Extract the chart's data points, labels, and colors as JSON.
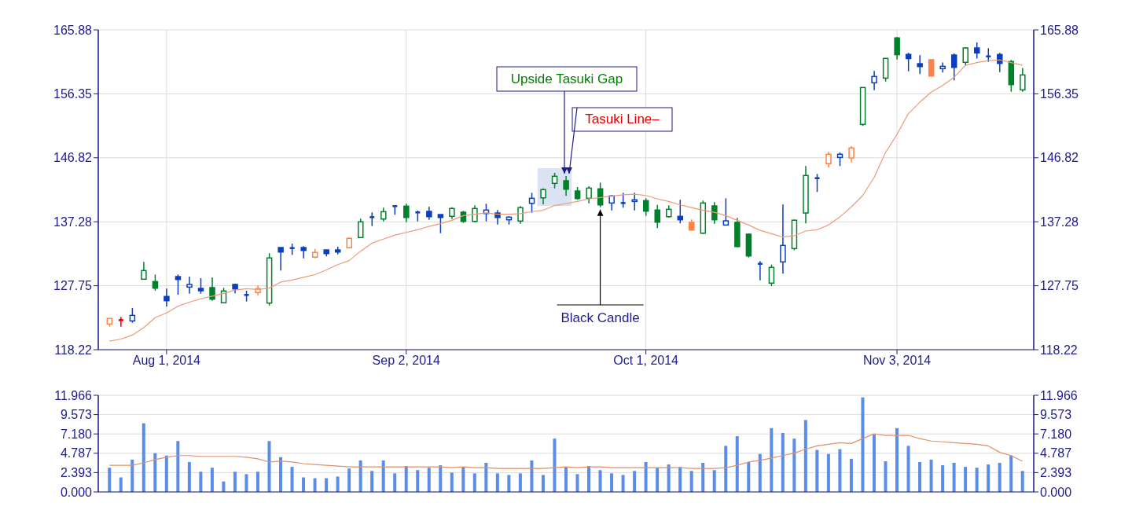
{
  "chart_data": [
    {
      "type": "candlestick",
      "categories": [
        null,
        null,
        null,
        null,
        null,
        "Aug 1, 2014",
        null,
        null,
        null,
        null,
        null,
        null,
        null,
        null,
        null,
        null,
        null,
        null,
        null,
        null,
        null,
        null,
        null,
        null,
        null,
        null,
        "Sep 2, 2014",
        null,
        null,
        null,
        null,
        null,
        null,
        null,
        null,
        null,
        null,
        null,
        null,
        null,
        null,
        null,
        null,
        null,
        null,
        null,
        null,
        "Oct 1, 2014",
        null,
        null,
        null,
        null,
        null,
        null,
        null,
        null,
        null,
        null,
        null,
        null,
        null,
        null,
        null,
        null,
        null,
        null,
        null,
        null,
        null,
        "Nov 3, 2014",
        null,
        null,
        null,
        null,
        null,
        null,
        null,
        null,
        null,
        null,
        null
      ],
      "ohlc": [
        [
          122.05,
          122.87,
          121.65,
          122.87
        ],
        [
          122.63,
          123.1,
          121.65,
          122.63
        ],
        [
          122.51,
          124.43,
          122.24,
          123.33
        ],
        [
          128.72,
          131.3,
          128.72,
          130.01
        ],
        [
          128.37,
          129.42,
          127.0,
          127.39
        ],
        [
          126.15,
          127.32,
          124.66,
          125.52
        ],
        [
          129.11,
          129.42,
          126.42,
          128.68
        ],
        [
          127.55,
          129.11,
          126.57,
          127.94
        ],
        [
          127.35,
          128.87,
          126.57,
          127.0
        ],
        [
          127.47,
          128.99,
          125.52,
          125.75
        ],
        [
          125.21,
          127.43,
          125.21,
          126.97
        ],
        [
          127.94,
          128.06,
          126.62,
          127.27
        ],
        [
          126.38,
          127.0,
          125.4,
          126.38
        ],
        [
          126.73,
          127.78,
          126.34,
          127.31
        ],
        [
          125.17,
          132.59,
          124.81,
          131.89
        ],
        [
          133.44,
          133.44,
          130.01,
          132.77
        ],
        [
          133.36,
          134.03,
          132.35,
          133.36
        ],
        [
          133.44,
          133.64,
          131.84,
          133.01
        ],
        [
          132.0,
          133.24,
          131.84,
          132.71
        ],
        [
          133.09,
          133.09,
          132.12,
          132.54
        ],
        [
          133.09,
          133.56,
          132.42,
          132.77
        ],
        [
          133.41,
          134.96,
          133.41,
          134.81
        ],
        [
          134.93,
          137.74,
          134.93,
          137.27
        ],
        [
          137.97,
          138.68,
          136.64,
          137.97
        ],
        [
          137.69,
          139.38,
          137.34,
          138.78
        ],
        [
          139.61,
          139.77,
          138.33,
          139.61
        ],
        [
          139.61,
          139.96,
          137.22,
          137.92
        ],
        [
          138.68,
          138.95,
          137.34,
          138.68
        ],
        [
          138.83,
          139.53,
          137.58,
          138.04
        ],
        [
          138.36,
          138.36,
          135.58,
          137.92
        ],
        [
          138.09,
          139.45,
          137.69,
          139.26
        ],
        [
          138.71,
          138.91,
          137.11,
          137.34
        ],
        [
          137.34,
          139.73,
          137.2,
          139.26
        ],
        [
          138.51,
          139.96,
          137.34,
          139.03
        ],
        [
          138.59,
          139.03,
          136.87,
          137.92
        ],
        [
          137.58,
          138.09,
          136.87,
          137.97
        ],
        [
          137.39,
          139.61,
          136.99,
          139.38
        ],
        [
          140.03,
          141.6,
          138.63,
          140.78
        ],
        [
          140.85,
          142.26,
          139.88,
          142.07
        ],
        [
          143.01,
          144.57,
          142.26,
          144.06
        ],
        [
          143.4,
          144.1,
          141.13,
          142.14
        ],
        [
          141.87,
          142.46,
          140.55,
          140.74
        ],
        [
          140.78,
          142.58,
          140.03,
          142.3
        ],
        [
          142.19,
          143.12,
          139.45,
          139.8
        ],
        [
          140.08,
          141.25,
          138.98,
          141.13
        ],
        [
          140.08,
          141.6,
          139.38,
          140.08
        ],
        [
          140.31,
          141.6,
          138.98,
          140.55
        ],
        [
          140.43,
          140.78,
          138.16,
          138.87
        ],
        [
          139.03,
          139.8,
          136.33,
          137.22
        ],
        [
          138.04,
          139.73,
          137.92,
          139.14
        ],
        [
          138.09,
          140.55,
          137.04,
          137.58
        ],
        [
          137.19,
          137.62,
          135.94,
          136.05
        ],
        [
          135.58,
          140.43,
          135.46,
          140.08
        ],
        [
          139.65,
          140.2,
          136.99,
          137.58
        ],
        [
          136.8,
          140.78,
          136.8,
          137.42
        ],
        [
          137.19,
          137.86,
          133.47,
          133.59
        ],
        [
          135.43,
          135.55,
          131.95,
          132.19
        ],
        [
          131.02,
          131.42,
          128.56,
          131.02
        ],
        [
          128.14,
          130.9,
          127.7,
          130.48
        ],
        [
          131.3,
          139.85,
          129.54,
          133.76
        ],
        [
          133.29,
          137.62,
          133.05,
          137.51
        ],
        [
          138.59,
          145.58,
          137.04,
          144.18
        ],
        [
          143.78,
          144.41,
          141.72,
          143.78
        ],
        [
          145.94,
          147.7,
          145.35,
          147.34
        ],
        [
          146.87,
          147.61,
          145.58,
          147.34
        ],
        [
          146.79,
          148.55,
          146.13,
          148.28
        ],
        [
          151.79,
          157.29,
          151.56,
          157.29
        ],
        [
          157.99,
          159.75,
          156.89,
          158.93
        ],
        [
          158.69,
          161.63,
          158.18,
          161.63
        ],
        [
          164.68,
          164.84,
          161.46,
          162.18
        ],
        [
          162.22,
          162.46,
          159.7,
          161.6
        ],
        [
          160.84,
          162.09,
          159.28,
          160.41
        ],
        [
          161.43,
          161.43,
          158.88,
          159.0
        ],
        [
          160.1,
          161.03,
          159.52,
          160.45
        ],
        [
          162.13,
          162.36,
          158.35,
          160.29
        ],
        [
          161.04,
          163.3,
          160.56,
          163.18
        ],
        [
          163.18,
          164.0,
          161.62,
          162.44
        ],
        [
          161.93,
          163.14,
          161.11,
          161.93
        ],
        [
          162.21,
          162.45,
          159.59,
          160.88
        ],
        [
          161.16,
          161.39,
          156.66,
          157.72
        ],
        [
          156.94,
          160.21,
          156.66,
          159.16
        ]
      ],
      "colors": [
        "#ff8247",
        "#e00000",
        "#0b3fbf",
        "#00802b",
        "#00802b",
        "#0b3fbf",
        "#0b3fbf",
        "#0b3fbf",
        "#0b3fbf",
        "#00802b",
        "#00802b",
        "#0b3fbf",
        "#0b3fbf",
        "#ff8247",
        "#00802b",
        "#0b3fbf",
        "#0b3fbf",
        "#0b3fbf",
        "#ff8247",
        "#0b3fbf",
        "#0b3fbf",
        "#ff8247",
        "#00802b",
        "#0b3fbf",
        "#00802b",
        "#0b3fbf",
        "#00802b",
        "#0b3fbf",
        "#0b3fbf",
        "#0b3fbf",
        "#00802b",
        "#00802b",
        "#00802b",
        "#0b3fbf",
        "#0b3fbf",
        "#0b3fbf",
        "#00802b",
        "#0b3fbf",
        "#00802b",
        "#00802b",
        "#00802b",
        "#00802b",
        "#00802b",
        "#00802b",
        "#0b3fbf",
        "#0b3fbf",
        "#0b3fbf",
        "#00802b",
        "#00802b",
        "#00802b",
        "#0b3fbf",
        "#ff8247",
        "#00802b",
        "#00802b",
        "#0b3fbf",
        "#00802b",
        "#00802b",
        "#0b3fbf",
        "#00802b",
        "#0b3fbf",
        "#00802b",
        "#00802b",
        "#0b3fbf",
        "#ff8247",
        "#0b3fbf",
        "#ff8247",
        "#00802b",
        "#0b3fbf",
        "#00802b",
        "#00802b",
        "#0b3fbf",
        "#0b3fbf",
        "#ff8247",
        "#0b3fbf",
        "#0b3fbf",
        "#00802b",
        "#0b3fbf",
        "#0b3fbf",
        "#0b3fbf",
        "#00802b",
        "#00802b"
      ],
      "series": [
        {
          "type": "line",
          "color": "#eb9a7a",
          "values": [
            119.5,
            119.8,
            120.4,
            121.5,
            123.0,
            123.7,
            124.7,
            125.3,
            125.8,
            126.2,
            126.6,
            127.1,
            127.3,
            127.2,
            127.4,
            128.3,
            128.6,
            129.0,
            129.4,
            130.1,
            130.9,
            131.5,
            132.9,
            134.1,
            134.7,
            135.3,
            135.7,
            136.1,
            136.6,
            137.0,
            137.5,
            138.2,
            138.4,
            138.6,
            138.4,
            138.4,
            138.5,
            138.8,
            139.0,
            139.7,
            140.0,
            140.3,
            140.7,
            140.9,
            141.1,
            141.3,
            141.4,
            141.2,
            140.7,
            140.3,
            139.8,
            139.4,
            139.0,
            138.7,
            138.2,
            137.5,
            136.8,
            136.0,
            135.5,
            135.0,
            135.2,
            135.9,
            136.1,
            136.8,
            138.0,
            139.5,
            141.2,
            143.9,
            147.6,
            150.3,
            153.4,
            155.1,
            156.6,
            157.6,
            158.8,
            160.6,
            161.0,
            161.3,
            161.4,
            161.0,
            160.6
          ]
        }
      ],
      "ylim": [
        118.22,
        165.88
      ],
      "yticks": [
        118.22,
        127.75,
        137.28,
        146.82,
        156.35,
        165.88
      ],
      "y2lim": [
        118.22,
        165.88
      ],
      "y2ticks": [
        118.22,
        127.75,
        137.28,
        146.82,
        156.35,
        165.88
      ],
      "grid": true,
      "annotations": [
        {
          "text": "Upside Tasuki Gap",
          "y": 144.1
        },
        "Tasuki Line–",
        {
          "text": "Black Candle",
          "y": 139.45
        }
      ]
    },
    {
      "type": "bar",
      "categories": [
        null,
        null,
        null,
        null,
        null,
        null,
        null,
        null,
        null,
        null,
        null,
        null,
        null,
        null,
        null,
        null,
        null,
        null,
        null,
        null,
        null,
        null,
        null,
        null,
        null,
        null,
        null,
        null,
        null,
        null,
        null,
        null,
        null,
        null,
        null,
        null,
        null,
        null,
        null,
        null,
        null,
        null,
        null,
        null,
        null,
        null,
        null,
        null,
        null,
        null,
        null,
        null,
        null,
        null,
        null,
        null,
        null,
        null,
        null,
        null,
        null,
        null,
        null,
        null,
        null,
        null,
        null,
        null,
        null,
        null,
        null,
        null,
        null,
        null,
        null,
        null,
        null,
        null,
        null,
        null,
        null
      ],
      "series": [
        {
          "color": "#5b8de8",
          "values": [
            3.0,
            1.8,
            4.0,
            8.5,
            4.8,
            4.5,
            6.3,
            3.7,
            2.5,
            3.0,
            1.3,
            2.5,
            2.2,
            2.5,
            6.3,
            4.3,
            3.1,
            1.8,
            1.7,
            1.7,
            1.9,
            2.9,
            3.9,
            2.6,
            3.9,
            2.3,
            3.2,
            2.7,
            3.0,
            3.3,
            2.4,
            3.1,
            2.3,
            3.6,
            2.3,
            2.1,
            2.3,
            3.9,
            2.1,
            6.6,
            3.1,
            2.2,
            3.2,
            2.7,
            2.3,
            2.1,
            2.6,
            3.7,
            3.0,
            3.4,
            3.1,
            2.6,
            3.6,
            2.7,
            5.7,
            6.9,
            3.7,
            4.7,
            7.9,
            7.3,
            6.6,
            8.9,
            5.2,
            4.7,
            5.3,
            4.1,
            11.7,
            7.1,
            3.8,
            7.9,
            5.7,
            3.7,
            4.0,
            3.3,
            3.6,
            3.1,
            3.0,
            3.4,
            3.6,
            4.5,
            2.6
          ]
        },
        {
          "type": "line",
          "color": "#e0906a",
          "values": [
            3.3,
            3.3,
            3.3,
            3.6,
            4.0,
            4.3,
            4.5,
            4.5,
            4.4,
            4.4,
            4.4,
            4.4,
            4.3,
            4.1,
            3.7,
            3.8,
            3.7,
            3.5,
            3.4,
            3.3,
            3.2,
            3.1,
            3.1,
            3.1,
            3.1,
            3.1,
            3.1,
            3.1,
            3.1,
            3.1,
            3.0,
            3.1,
            3.0,
            3.0,
            2.9,
            2.9,
            2.9,
            2.9,
            2.9,
            3.0,
            3.1,
            3.0,
            3.1,
            3.1,
            3.0,
            3.0,
            3.0,
            3.0,
            3.0,
            3.0,
            3.0,
            2.9,
            2.9,
            2.9,
            3.0,
            3.3,
            3.7,
            3.9,
            4.2,
            4.5,
            4.8,
            5.3,
            5.7,
            5.9,
            6.1,
            6.0,
            6.6,
            7.2,
            7.0,
            7.0,
            7.0,
            6.6,
            6.3,
            6.2,
            6.1,
            6.0,
            5.9,
            5.7,
            4.9,
            4.5,
            3.8
          ]
        }
      ],
      "ylim": [
        0,
        11.966
      ],
      "yticks": [
        {
          "value": 0,
          "label": "0.000"
        },
        2.393,
        4.787,
        {
          "value": 7.18,
          "label": "7.180"
        },
        9.573,
        11.966
      ],
      "y2lim": [
        0,
        11.966
      ],
      "y2ticks": [
        {
          "value": 0,
          "label": "0.000"
        },
        2.393,
        4.787,
        {
          "value": 7.18,
          "label": "7.180"
        },
        9.573,
        11.966
      ],
      "grid": true,
      "tick_labels": "y"
    }
  ]
}
